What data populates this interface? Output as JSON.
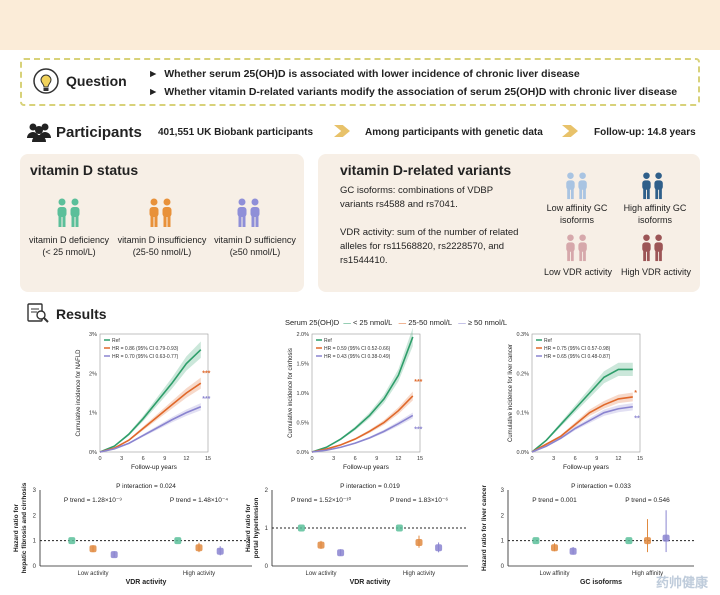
{
  "question": {
    "title": "Question",
    "items": [
      "Whether serum 25(OH)D is associated with lower incidence of chronic liver disease",
      "Whether vitamin D-related variants modify the association of serum 25(OH)D with chronic liver disease"
    ]
  },
  "participants": {
    "title": "Participants",
    "items": [
      "401,551 UK Biobank participants",
      "Among participants with genetic data",
      "Follow-up: 14.8 years"
    ]
  },
  "vitd_status": {
    "title": "vitamin D status",
    "groups": [
      {
        "line1": "vitamin D deficiency",
        "line2": "(< 25 nmol/L)",
        "color": "#5bbf9a"
      },
      {
        "line1": "vitamin D insufficiency",
        "line2": "(25-50 nmol/L)",
        "color": "#e8913a"
      },
      {
        "line1": "vitamin D sufficiency",
        "line2": "(≥50 nmol/L)",
        "color": "#8f8fd8"
      }
    ]
  },
  "variants": {
    "title": "vitamin D-related variants",
    "gc_text": [
      "GC isoforms: combinations of VDBP",
      "variants rs4588 and rs7041."
    ],
    "vdr_text": [
      "VDR activity: sum of the number of related",
      "alleles for rs11568820, rs2228570, and",
      "rs1544410."
    ],
    "icons": [
      {
        "line1": "Low affinity GC",
        "line2": "isoforms",
        "color": "#a9c4e2"
      },
      {
        "line1": "High affinity GC",
        "line2": "isoforms",
        "color": "#2f5f8a"
      },
      {
        "line1": "Low VDR activity",
        "line2": "",
        "color": "#d6a8ab"
      },
      {
        "line1": "High VDR activity",
        "line2": "",
        "color": "#9c5556"
      }
    ]
  },
  "results": {
    "title": "Results",
    "legend": {
      "label": "Serum 25(OH)D",
      "items": [
        {
          "label": "< 25 nmol/L",
          "color": "#2e9e6a"
        },
        {
          "label": "25-50 nmol/L",
          "color": "#e0682a"
        },
        {
          "label": "≥ 50 nmol/L",
          "color": "#8a84d0"
        }
      ]
    }
  },
  "chart_data": [
    {
      "type": "line",
      "ylabel": "Cumulative incidence for NAFLD",
      "xlabel": "Follow-up years",
      "x_ticks": [
        "0",
        "3",
        "6",
        "9",
        "12",
        "15"
      ],
      "y_ticks": [
        "0%",
        "1%",
        "2%",
        "3%"
      ],
      "ylim": [
        0,
        3
      ],
      "legend": [
        "Ref",
        "HR = 0.86 (95% CI 0.79-0.93)",
        "HR = 0.70 (95% CI 0.63-0.77)"
      ],
      "x": [
        0,
        2,
        4,
        6,
        8,
        10,
        12,
        14
      ],
      "series": [
        {
          "values": [
            0,
            0.15,
            0.45,
            0.85,
            1.3,
            1.75,
            2.25,
            2.6
          ],
          "color": "#2e9e6a"
        },
        {
          "values": [
            0,
            0.1,
            0.3,
            0.6,
            0.9,
            1.2,
            1.5,
            1.75
          ],
          "color": "#e0682a"
        },
        {
          "values": [
            0,
            0.08,
            0.22,
            0.42,
            0.62,
            0.82,
            1.0,
            1.15
          ],
          "color": "#8a84d0"
        }
      ],
      "marks": [
        {
          "text": "***",
          "color": "#e0682a",
          "y": 1.95
        },
        {
          "text": "***",
          "color": "#8a84d0",
          "y": 1.3
        }
      ]
    },
    {
      "type": "line",
      "ylabel": "Cumulative incidence for cirrhosis",
      "xlabel": "Follow-up years",
      "x_ticks": [
        "0",
        "3",
        "6",
        "9",
        "12",
        "15"
      ],
      "y_ticks": [
        "0.0%",
        "0.5%",
        "1.0%",
        "1.5%",
        "2.0%"
      ],
      "ylim": [
        0,
        2.0
      ],
      "legend": [
        "Ref",
        "HR = 0.59 (95% CI 0.52-0.66)",
        "HR = 0.43 (95% CI 0.38-0.49)"
      ],
      "x": [
        0,
        2,
        4,
        6,
        8,
        10,
        12,
        14
      ],
      "series": [
        {
          "values": [
            0,
            0.08,
            0.22,
            0.4,
            0.62,
            0.9,
            1.3,
            1.95
          ],
          "color": "#2e9e6a"
        },
        {
          "values": [
            0,
            0.05,
            0.12,
            0.22,
            0.35,
            0.5,
            0.7,
            0.95
          ],
          "color": "#e0682a"
        },
        {
          "values": [
            0,
            0.03,
            0.08,
            0.15,
            0.24,
            0.35,
            0.48,
            0.62
          ],
          "color": "#8a84d0"
        }
      ],
      "marks": [
        {
          "text": "***",
          "color": "#e0682a",
          "y": 1.15
        },
        {
          "text": "***",
          "color": "#8a84d0",
          "y": 0.35
        }
      ]
    },
    {
      "type": "line",
      "ylabel": "Cumulative incidence for liver cancer",
      "xlabel": "Follow-up years",
      "x_ticks": [
        "0",
        "3",
        "6",
        "9",
        "12",
        "15"
      ],
      "y_ticks": [
        "0.0%",
        "0.1%",
        "0.2%",
        "0.3%"
      ],
      "ylim": [
        0,
        0.3
      ],
      "legend": [
        "Ref",
        "HR = 0.75 (95% CI 0.57-0.98)",
        "HR = 0.65 (95% CI 0.48-0.87)"
      ],
      "x": [
        0,
        2,
        4,
        6,
        8,
        10,
        12,
        14
      ],
      "series": [
        {
          "values": [
            0,
            0.03,
            0.07,
            0.11,
            0.15,
            0.19,
            0.21,
            0.21
          ],
          "color": "#2e9e6a"
        },
        {
          "values": [
            0,
            0.02,
            0.04,
            0.07,
            0.1,
            0.12,
            0.135,
            0.14
          ],
          "color": "#e0682a"
        },
        {
          "values": [
            0,
            0.015,
            0.035,
            0.06,
            0.08,
            0.1,
            0.11,
            0.115
          ],
          "color": "#8a84d0"
        }
      ],
      "marks": [
        {
          "text": "*",
          "color": "#e0682a",
          "y": 0.145
        },
        {
          "text": "**",
          "color": "#8a84d0",
          "y": 0.08
        }
      ]
    },
    {
      "type": "scatter",
      "ylabel": [
        "Hazard ratio for",
        "hepatic fibrosis and cirrhosis"
      ],
      "xlabel": "VDR activity",
      "groups": [
        "Low activity",
        "High activity"
      ],
      "y_ticks": [
        "0",
        "1",
        "2",
        "3"
      ],
      "ylim": [
        0,
        3
      ],
      "p_interaction": "P interaction = 0.024",
      "p_trend": [
        "P trend = 1.28×10⁻⁹",
        "P trend = 1.48×10⁻⁴"
      ],
      "points": [
        {
          "group": 0,
          "series": 0,
          "value": 1.0,
          "lo": 1.0,
          "hi": 1.0
        },
        {
          "group": 0,
          "series": 1,
          "value": 0.68,
          "lo": 0.55,
          "hi": 0.82
        },
        {
          "group": 0,
          "series": 2,
          "value": 0.45,
          "lo": 0.35,
          "hi": 0.58
        },
        {
          "group": 1,
          "series": 0,
          "value": 1.0,
          "lo": 1.0,
          "hi": 1.0
        },
        {
          "group": 1,
          "series": 1,
          "value": 0.72,
          "lo": 0.55,
          "hi": 0.92
        },
        {
          "group": 1,
          "series": 2,
          "value": 0.58,
          "lo": 0.42,
          "hi": 0.78
        }
      ]
    },
    {
      "type": "scatter",
      "ylabel": [
        "Hazard ratio for",
        "portal hypertension"
      ],
      "xlabel": "VDR activity",
      "groups": [
        "Low activity",
        "High activity"
      ],
      "y_ticks": [
        "0",
        "1",
        "2"
      ],
      "ylim": [
        0,
        2
      ],
      "p_interaction": "P interaction = 0.019",
      "p_trend": [
        "P trend = 1.52×10⁻¹⁰",
        "P trend = 1.83×10⁻⁶"
      ],
      "points": [
        {
          "group": 0,
          "series": 0,
          "value": 1.0,
          "lo": 1.0,
          "hi": 1.0
        },
        {
          "group": 0,
          "series": 1,
          "value": 0.55,
          "lo": 0.45,
          "hi": 0.66
        },
        {
          "group": 0,
          "series": 2,
          "value": 0.35,
          "lo": 0.27,
          "hi": 0.44
        },
        {
          "group": 1,
          "series": 0,
          "value": 1.0,
          "lo": 1.0,
          "hi": 1.0
        },
        {
          "group": 1,
          "series": 1,
          "value": 0.62,
          "lo": 0.48,
          "hi": 0.8
        },
        {
          "group": 1,
          "series": 2,
          "value": 0.48,
          "lo": 0.36,
          "hi": 0.62
        }
      ]
    },
    {
      "type": "scatter",
      "ylabel": [
        "Hazard ratio for liver cancer"
      ],
      "xlabel": "GC isoforms",
      "groups": [
        "Low affinity",
        "High affinity"
      ],
      "y_ticks": [
        "0",
        "1",
        "2",
        "3"
      ],
      "ylim": [
        0,
        3
      ],
      "p_interaction": "P interaction = 0.033",
      "p_trend": [
        "P trend = 0.001",
        "P trend = 0.546"
      ],
      "points": [
        {
          "group": 0,
          "series": 0,
          "value": 1.0,
          "lo": 1.0,
          "hi": 1.0
        },
        {
          "group": 0,
          "series": 1,
          "value": 0.72,
          "lo": 0.58,
          "hi": 0.9
        },
        {
          "group": 0,
          "series": 2,
          "value": 0.58,
          "lo": 0.45,
          "hi": 0.75
        },
        {
          "group": 1,
          "series": 0,
          "value": 1.0,
          "lo": 1.0,
          "hi": 1.0
        },
        {
          "group": 1,
          "series": 1,
          "value": 1.0,
          "lo": 0.55,
          "hi": 1.85
        },
        {
          "group": 1,
          "series": 2,
          "value": 1.1,
          "lo": 0.55,
          "hi": 2.2
        }
      ]
    }
  ],
  "watermark": "药帅健康"
}
